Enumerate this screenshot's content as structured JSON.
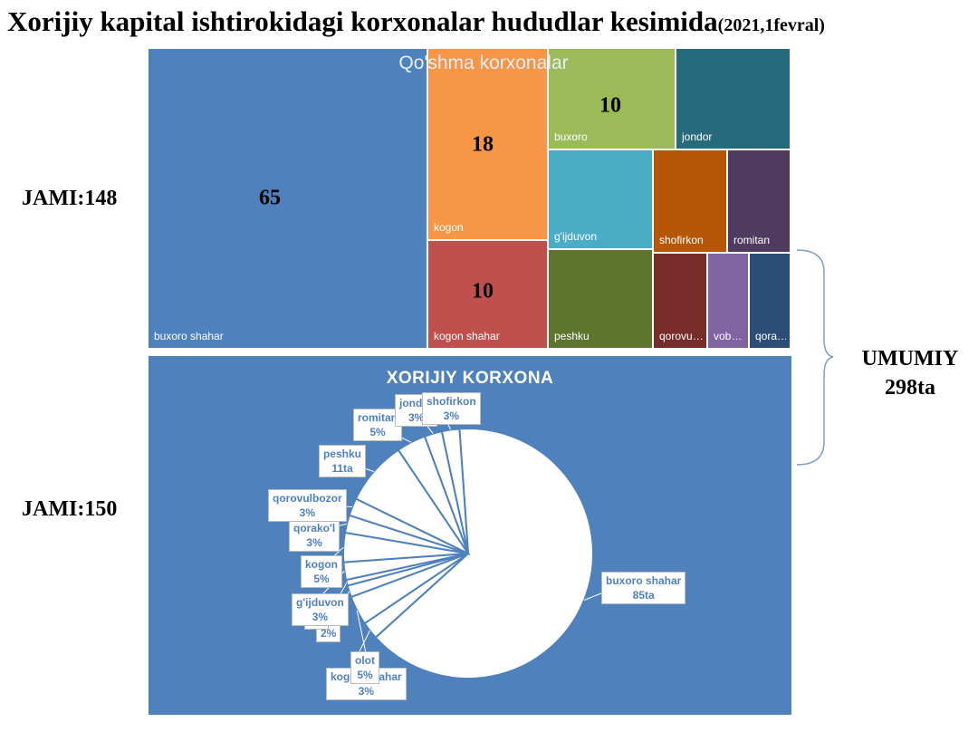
{
  "title": {
    "main": "Xorijiy kapital ishtirokidagi korxonalar hududlar kesimida",
    "sub": "(2021,1fevral)"
  },
  "side_labels": {
    "top": "JAMI:148",
    "bottom": "JAMI:150"
  },
  "umumiy": {
    "line1": "UMUMIY",
    "line2": "298ta"
  },
  "chart_data": [
    {
      "type": "treemap",
      "title": "Qo'shma korxonalar",
      "total_label": "JAMI:148",
      "items": [
        {
          "name": "buxoro shahar",
          "value": 65,
          "value_label": "65",
          "color": "#4f81bd"
        },
        {
          "name": "kogon",
          "value": 18,
          "value_label": "18",
          "color": "#f79646"
        },
        {
          "name": "kogon shahar",
          "value": 10,
          "value_label": "10",
          "color": "#c0504d"
        },
        {
          "name": "buxoro",
          "value": 10,
          "value_label": "10",
          "color": "#9bbb59"
        },
        {
          "name": "jondor",
          "value": 7,
          "value_label": "",
          "color": "#276a7c"
        },
        {
          "name": "g'ijduvon",
          "value": 8,
          "value_label": "",
          "color": "#4bacc6"
        },
        {
          "name": "shofirkon",
          "value": 6,
          "value_label": "",
          "color": "#b65708"
        },
        {
          "name": "romitan",
          "value": 5,
          "value_label": "",
          "color": "#4f3b60"
        },
        {
          "name": "peshku",
          "value": 8,
          "value_label": "",
          "color": "#5e7530"
        },
        {
          "name": "qorovu…",
          "value": 4,
          "value_label": "",
          "color": "#772c2a"
        },
        {
          "name": "vob…",
          "value": 3,
          "value_label": "",
          "color": "#8064a2"
        },
        {
          "name": "qora…",
          "value": 3,
          "value_label": "",
          "color": "#2c4d75"
        }
      ]
    },
    {
      "type": "pie",
      "title": "XORIJIY KORXONA",
      "total_label": "JAMI:150",
      "slices": [
        {
          "name": "buxoro shahar",
          "label": "85ta",
          "value": 85
        },
        {
          "name": "kogon shahar",
          "label": "3%",
          "value": 3
        },
        {
          "name": "olot",
          "label": "5%",
          "value": 5
        },
        {
          "name": "",
          "label": "2%",
          "value": 2
        },
        {
          "name": "",
          "label": "1%",
          "value": 1
        },
        {
          "name": "g'ijduvon",
          "label": "3%",
          "value": 3
        },
        {
          "name": "kogon",
          "label": "5%",
          "value": 5
        },
        {
          "name": "qorako'l",
          "label": "3%",
          "value": 3
        },
        {
          "name": "qorovulbozor",
          "label": "3%",
          "value": 3
        },
        {
          "name": "peshku",
          "label": "11ta",
          "value": 11
        },
        {
          "name": "romitan",
          "label": "5%",
          "value": 5
        },
        {
          "name": "jondor",
          "label": "3%",
          "value": 3
        },
        {
          "name": "shofirkon",
          "label": "3%",
          "value": 3
        }
      ],
      "colors": {
        "background": "#4f81bd",
        "slice": "#ffffff",
        "stroke": "#4f81bd"
      }
    }
  ]
}
